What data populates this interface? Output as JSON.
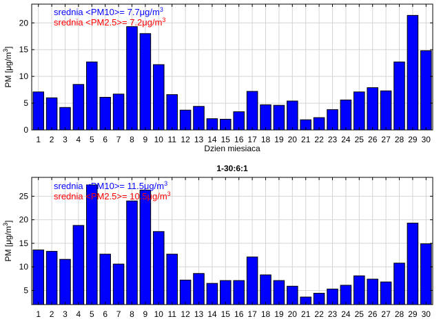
{
  "chart_data": [
    {
      "type": "bar",
      "title": "",
      "xlabel": "Dzien miesiaca",
      "ylabel": "PM [μg/m³]",
      "ylabel_parts": {
        "base": "PM [μg/m",
        "sup": "3",
        "close": "]"
      },
      "ylim": [
        0,
        23.5
      ],
      "yticks": [
        0,
        5,
        10,
        15,
        20
      ],
      "categories": [
        "1",
        "2",
        "3",
        "4",
        "5",
        "6",
        "7",
        "8",
        "9",
        "10",
        "11",
        "12",
        "13",
        "14",
        "15",
        "16",
        "17",
        "18",
        "19",
        "20",
        "21",
        "22",
        "23",
        "24",
        "25",
        "26",
        "27",
        "28",
        "29",
        "30"
      ],
      "values": [
        7.1,
        6.0,
        4.2,
        8.5,
        12.7,
        6.1,
        6.7,
        19.3,
        18.0,
        12.2,
        6.6,
        3.7,
        4.4,
        2.1,
        2.0,
        3.4,
        7.2,
        4.7,
        4.6,
        5.4,
        1.9,
        2.3,
        3.8,
        5.6,
        7.1,
        7.9,
        7.3,
        12.7,
        21.4,
        14.8
      ],
      "grid": true,
      "annotations": [
        {
          "text": "srednia <PM10>= 7.7μg/m",
          "sup": "3",
          "color": "#0000ff"
        },
        {
          "text": "srednia <PM2.5>= 7.2μg/m",
          "sup": "3",
          "color": "#ff0000"
        }
      ]
    },
    {
      "type": "bar",
      "title": "1-30:6:1",
      "xlabel": "",
      "ylabel": "PM [μg/m³]",
      "ylabel_parts": {
        "base": "PM [μg/m",
        "sup": "3",
        "close": "]"
      },
      "ylim": [
        2,
        29
      ],
      "yticks": [
        5,
        10,
        15,
        20,
        25
      ],
      "categories": [
        "1",
        "2",
        "3",
        "4",
        "5",
        "6",
        "7",
        "8",
        "9",
        "10",
        "11",
        "12",
        "13",
        "14",
        "15",
        "16",
        "17",
        "18",
        "19",
        "20",
        "21",
        "22",
        "23",
        "24",
        "25",
        "26",
        "27",
        "28",
        "29",
        "30"
      ],
      "values": [
        13.6,
        13.3,
        11.6,
        18.8,
        27.4,
        12.7,
        10.6,
        24.0,
        26.3,
        17.5,
        12.7,
        7.2,
        8.6,
        6.5,
        7.1,
        7.1,
        12.1,
        8.3,
        7.1,
        5.9,
        3.6,
        4.4,
        5.3,
        6.1,
        8.1,
        7.4,
        6.8,
        10.8,
        19.3,
        14.9
      ],
      "grid": true,
      "annotations": [
        {
          "text": "srednia <PM10>= 11.5μg/m",
          "sup": "3",
          "color": "#0000ff"
        },
        {
          "text": "srednia <PM2.5>= 10.5μg/m",
          "sup": "3",
          "color": "#ff0000"
        }
      ]
    }
  ],
  "colors": {
    "bar_fill": "#0000ff",
    "bar_edge": "#000000",
    "grid": "#d4d4d4",
    "axis": "#000000"
  }
}
